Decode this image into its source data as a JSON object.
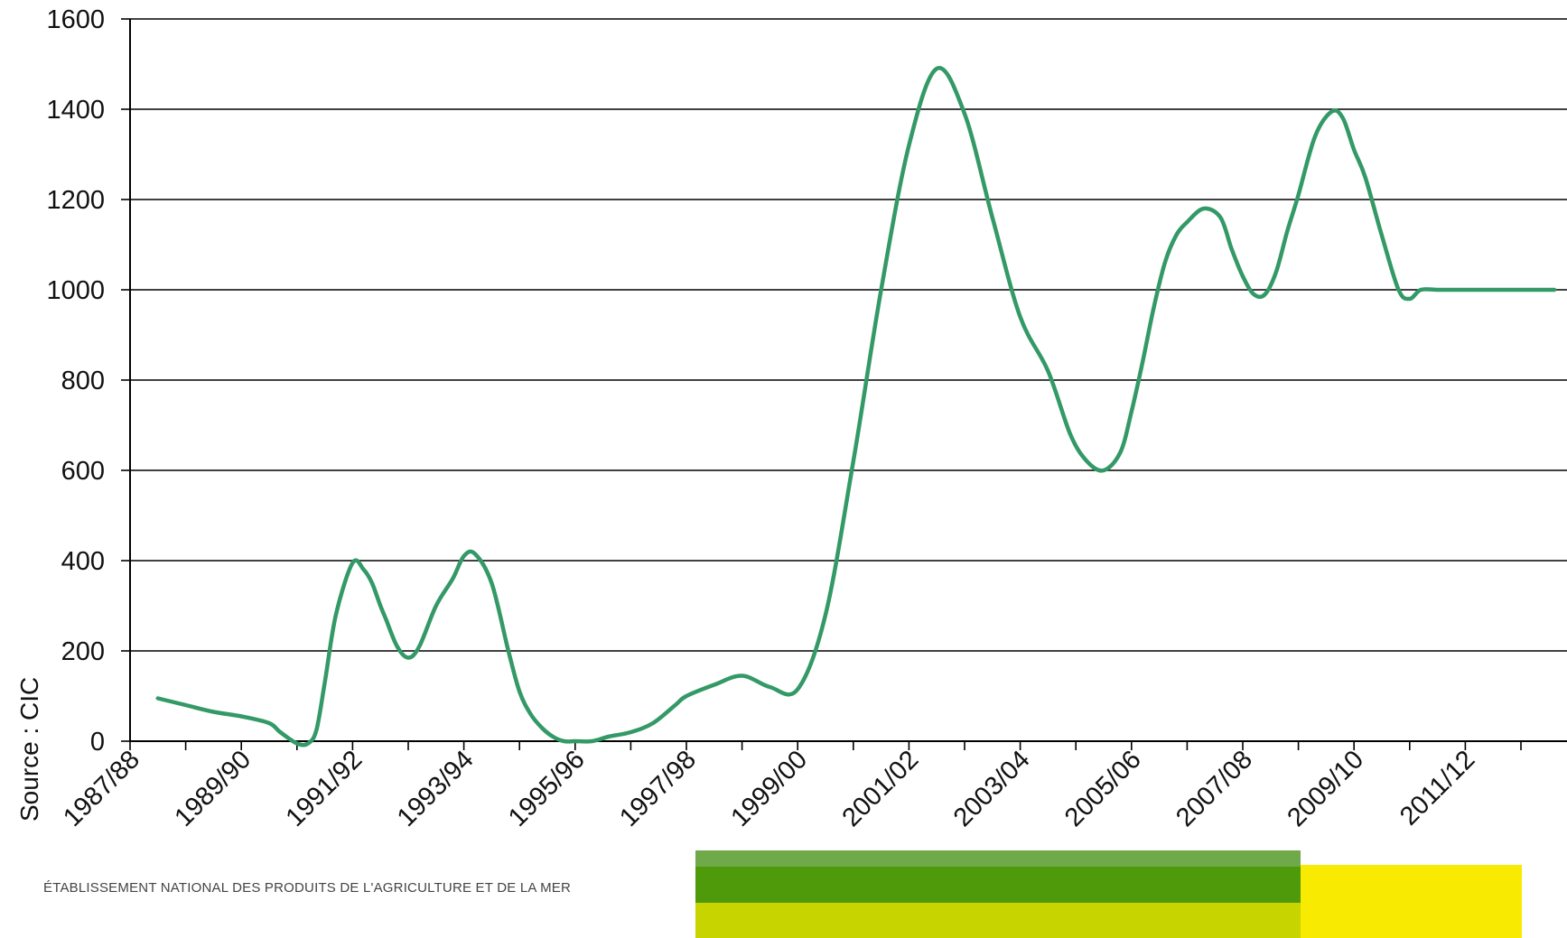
{
  "chart_data": {
    "type": "line",
    "title": "",
    "xlabel": "",
    "ylabel": "",
    "ylim": [
      0,
      1600
    ],
    "yticks": [
      0,
      200,
      400,
      600,
      800,
      1000,
      1200,
      1400,
      1600
    ],
    "ytick_labels": [
      "0",
      "200",
      "400",
      "600",
      "800",
      "1000",
      "1200",
      "1400",
      "1600"
    ],
    "xtick_labels": [
      "1987/88",
      "1989/90",
      "1991/92",
      "1993/94",
      "1995/96",
      "1997/98",
      "1999/00",
      "2001/02",
      "2003/04",
      "2005/06",
      "2007/08",
      "2009/10",
      "2011/12"
    ],
    "grid": true,
    "series": [
      {
        "color": "#339966",
        "x": [
          0.5,
          1.0,
          1.5,
          2.0,
          2.5,
          2.7,
          3.0,
          3.2,
          3.35,
          3.5,
          3.7,
          4.0,
          4.2,
          4.35,
          4.5,
          4.6,
          4.8,
          5.0,
          5.2,
          5.5,
          5.8,
          6.0,
          6.2,
          6.5,
          6.8,
          7.0,
          7.2,
          7.4,
          7.6,
          7.8,
          8.0,
          8.3,
          8.6,
          9.0,
          9.4,
          9.8,
          10.0,
          10.5,
          11.0,
          11.5,
          12.0,
          12.5,
          13.0,
          13.5,
          14.0,
          14.5,
          15.0,
          15.5,
          16.0,
          16.5,
          16.9,
          17.2,
          17.5,
          17.8,
          18.0,
          18.2,
          18.4,
          18.6,
          18.8,
          19.0,
          19.3,
          19.6,
          19.8,
          20.0,
          20.2,
          20.4,
          20.6,
          20.8,
          21.0,
          21.3,
          21.6,
          21.8,
          22.0,
          22.2,
          22.5,
          22.8,
          23.0,
          23.2,
          23.5,
          23.8,
          24.0,
          24.2,
          24.4,
          24.6,
          24.8,
          25.0,
          25.2,
          25.4,
          25.6
        ],
        "values": [
          95,
          80,
          65,
          55,
          40,
          20,
          -5,
          -5,
          25,
          130,
          280,
          395,
          380,
          350,
          300,
          270,
          210,
          185,
          210,
          300,
          360,
          410,
          415,
          350,
          200,
          110,
          60,
          30,
          10,
          0,
          0,
          0,
          10,
          20,
          40,
          80,
          100,
          125,
          145,
          120,
          115,
          280,
          620,
          1000,
          1320,
          1490,
          1390,
          1160,
          940,
          820,
          680,
          620,
          600,
          640,
          730,
          840,
          960,
          1060,
          1120,
          1150,
          1180,
          1160,
          1090,
          1030,
          990,
          990,
          1040,
          1130,
          1210,
          1340,
          1395,
          1380,
          1310,
          1250,
          1120,
          1000,
          980,
          1000,
          1000,
          1000,
          1000,
          1000,
          1000,
          1000,
          1000,
          1000,
          1000,
          1000,
          1000
        ]
      }
    ]
  },
  "source_label": "Source : CIC",
  "footer": {
    "text": "ÉTABLISSEMENT NATIONAL DES PRODUITS DE L'AGRICULTURE ET DE LA MER",
    "colors": {
      "dark_green": "#4f9a0a",
      "light_green": "#6fa94a",
      "lime": "#c8d400",
      "yellow": "#f8ea00"
    }
  }
}
